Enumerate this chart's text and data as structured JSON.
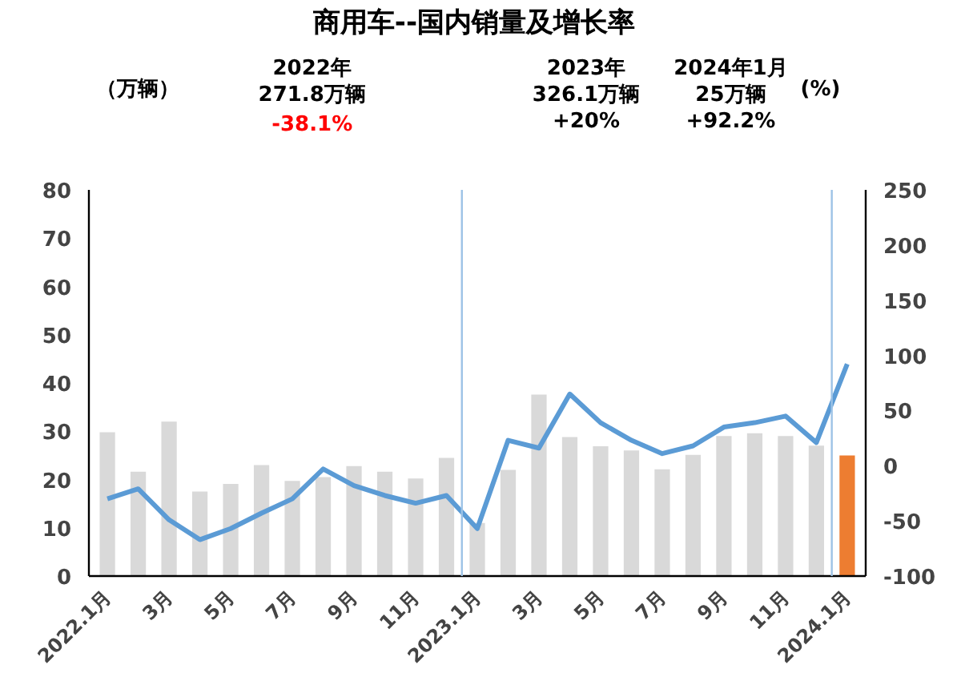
{
  "chart_data": {
    "type": "bar",
    "title": "商用车--国内销量及增长率",
    "ylabel": "（万辆）",
    "y2label": "(%)",
    "categories": [
      "2022.1月",
      null,
      "3月",
      null,
      "5月",
      null,
      "7月",
      null,
      "9月",
      null,
      "11月",
      null,
      "2023.1月",
      null,
      "3月",
      null,
      "5月",
      null,
      "7月",
      null,
      "9月",
      null,
      "11月",
      null,
      "2024.1月"
    ],
    "series": [
      {
        "colors": [
          "#d9d9d9",
          "#d9d9d9",
          "#d9d9d9",
          "#d9d9d9",
          "#d9d9d9",
          "#d9d9d9",
          "#d9d9d9",
          "#d9d9d9",
          "#d9d9d9",
          "#d9d9d9",
          "#d9d9d9",
          "#d9d9d9",
          "#d9d9d9",
          "#d9d9d9",
          "#d9d9d9",
          "#d9d9d9",
          "#d9d9d9",
          "#d9d9d9",
          "#d9d9d9",
          "#d9d9d9",
          "#d9d9d9",
          "#d9d9d9",
          "#d9d9d9",
          "#d9d9d9",
          "#ed7d31"
        ],
        "values": [
          29.8,
          21.6,
          32.0,
          17.5,
          19.1,
          23.0,
          19.7,
          20.5,
          22.8,
          21.6,
          20.2,
          24.5,
          11,
          22,
          37.6,
          28.8,
          26.9,
          26,
          22.1,
          25.1,
          29,
          29.6,
          29,
          27,
          25
        ]
      },
      {
        "type": "line",
        "axis": "y2",
        "color": "#5b9bd5",
        "values": [
          -30,
          -21,
          -49,
          -67,
          -57,
          -43,
          -30,
          -3,
          -18,
          -27,
          -34,
          -27,
          -57,
          23,
          16,
          65,
          39,
          23,
          11,
          18,
          35,
          39,
          45,
          21,
          92.2
        ]
      }
    ],
    "ylim": [
      0,
      80
    ],
    "yticks": [
      0,
      10,
      20,
      30,
      40,
      50,
      60,
      70,
      80
    ],
    "y2lim": [
      -100,
      250
    ],
    "y2ticks": [
      -100,
      -50,
      0,
      50,
      100,
      150,
      200,
      250
    ],
    "annotations": [
      "2022年\n271.8万辆",
      "-38.1%",
      "2023年\n326.1万辆\n+20%",
      "2024年1月\n25万辆\n+92.2%"
    ],
    "grid": false
  }
}
